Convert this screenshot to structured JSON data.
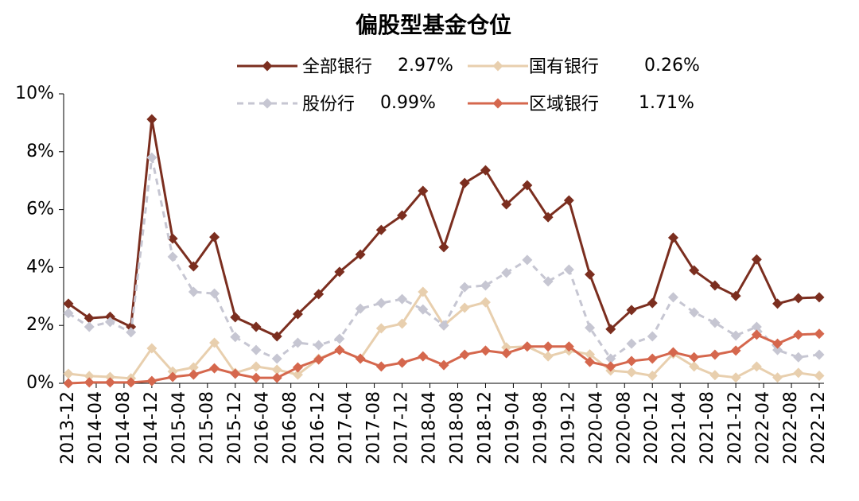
{
  "chart_data": {
    "type": "line",
    "title": "偏股型基金仓位",
    "x": [
      "2013-12",
      "2014-03",
      "2014-06",
      "2014-09",
      "2014-12",
      "2015-03",
      "2015-06",
      "2015-09",
      "2015-12",
      "2016-03",
      "2016-06",
      "2016-09",
      "2016-12",
      "2017-03",
      "2017-06",
      "2017-09",
      "2017-12",
      "2018-03",
      "2018-06",
      "2018-09",
      "2018-12",
      "2019-03",
      "2019-06",
      "2019-09",
      "2019-12",
      "2020-03",
      "2020-06",
      "2020-09",
      "2020-12",
      "2021-03",
      "2021-06",
      "2021-09",
      "2021-12",
      "2022-03",
      "2022-06",
      "2022-09",
      "2022-12"
    ],
    "xlim": [
      "2013-12",
      "2022-12"
    ],
    "xticks": [
      "2013-12",
      "2014-04",
      "2014-08",
      "2014-12",
      "2015-04",
      "2015-08",
      "2015-12",
      "2016-04",
      "2016-08",
      "2016-12",
      "2017-04",
      "2017-08",
      "2017-12",
      "2018-04",
      "2018-08",
      "2018-12",
      "2019-04",
      "2019-08",
      "2019-12",
      "2020-04",
      "2020-08",
      "2020-12",
      "2021-04",
      "2021-08",
      "2021-12",
      "2022-04",
      "2022-08",
      "2022-12"
    ],
    "ylim": [
      0,
      10
    ],
    "yticks": [
      {
        "value": 0,
        "label": "0%"
      },
      {
        "value": 2,
        "label": "2%"
      },
      {
        "value": 4,
        "label": "4%"
      },
      {
        "value": 6,
        "label": "6%"
      },
      {
        "value": 8,
        "label": "8%"
      },
      {
        "value": 10,
        "label": "10%"
      }
    ],
    "series": [
      {
        "name": "全部银行",
        "last_value_label": "2.97%",
        "color": "#7b2e1f",
        "dashed": false,
        "values": [
          2.75,
          2.25,
          2.3,
          1.95,
          9.12,
          5.0,
          4.04,
          5.05,
          2.28,
          1.95,
          1.62,
          2.39,
          3.08,
          3.85,
          4.45,
          5.3,
          5.8,
          6.65,
          4.7,
          6.92,
          7.36,
          6.18,
          6.84,
          5.74,
          6.32,
          3.76,
          1.87,
          2.53,
          2.77,
          5.03,
          3.9,
          3.38,
          3.02,
          4.28,
          2.75,
          2.94,
          2.97
        ]
      },
      {
        "name": "国有银行",
        "last_value_label": "0.26%",
        "color": "#e8cfae",
        "dashed": false,
        "values": [
          0.33,
          0.25,
          0.22,
          0.17,
          1.21,
          0.41,
          0.55,
          1.4,
          0.36,
          0.58,
          0.47,
          0.3,
          0.85,
          1.15,
          0.85,
          1.9,
          2.06,
          3.16,
          2.0,
          2.61,
          2.8,
          1.24,
          1.27,
          0.93,
          1.13,
          1.0,
          0.44,
          0.38,
          0.26,
          1.02,
          0.58,
          0.28,
          0.2,
          0.58,
          0.2,
          0.36,
          0.26
        ]
      },
      {
        "name": "股份行",
        "last_value_label": "0.99%",
        "color": "#c6c6d2",
        "dashed": true,
        "values": [
          2.42,
          1.95,
          2.12,
          1.76,
          7.8,
          4.37,
          3.16,
          3.1,
          1.6,
          1.15,
          0.85,
          1.4,
          1.32,
          1.54,
          2.58,
          2.77,
          2.91,
          2.55,
          2.0,
          3.32,
          3.38,
          3.82,
          4.26,
          3.52,
          3.93,
          1.92,
          0.85,
          1.37,
          1.62,
          2.97,
          2.45,
          2.09,
          1.65,
          1.95,
          1.15,
          0.9,
          0.99
        ]
      },
      {
        "name": "区域银行",
        "last_value_label": "1.71%",
        "color": "#d5674d",
        "dashed": false,
        "values": [
          0,
          0.03,
          0.03,
          0.03,
          0.08,
          0.22,
          0.3,
          0.52,
          0.33,
          0.19,
          0.19,
          0.55,
          0.82,
          1.15,
          0.85,
          0.58,
          0.71,
          0.93,
          0.63,
          0.99,
          1.13,
          1.04,
          1.27,
          1.27,
          1.27,
          0.74,
          0.58,
          0.77,
          0.85,
          1.07,
          0.9,
          0.99,
          1.13,
          1.68,
          1.37,
          1.68,
          1.71
        ]
      }
    ]
  }
}
